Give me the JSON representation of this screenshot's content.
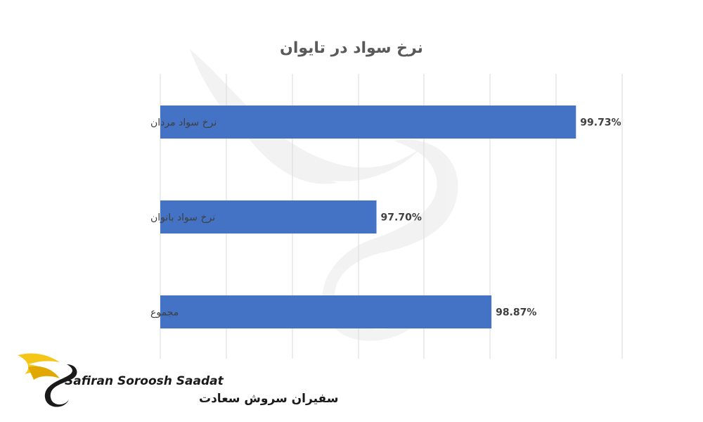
{
  "chart_data": {
    "type": "bar",
    "orientation": "horizontal",
    "title": "نرخ سواد در تایوان",
    "categories": [
      "نرخ سواد مردان",
      "نرخ سواد بانوان",
      "مجموع"
    ],
    "values": [
      99.73,
      97.7,
      98.87
    ],
    "value_labels": [
      "99.73%",
      "97.70%",
      "98.87%"
    ],
    "xlim": [
      95.5,
      100.2
    ],
    "gridlines": true,
    "legend": "none",
    "bar_color": "#4472C4"
  },
  "brand": {
    "name_en": "Safiran Soroosh Saadat",
    "name_fa": "سفیران سروش سعادت",
    "accent_color": "#F5C518",
    "logo_icon": "swan-wing-logo"
  }
}
